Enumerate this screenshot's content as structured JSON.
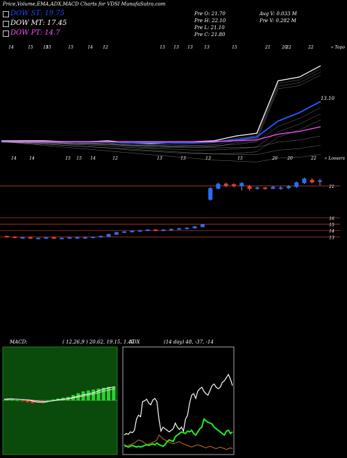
{
  "title": "Price,Volume,EMA,ADX,MACD Charts for VDSI MunafaSutra.com",
  "dow": [
    {
      "label": "DOW ST: 19.75",
      "color": "#1f4fff"
    },
    {
      "label": "DOW MT: 17.45",
      "color": "#ffffff"
    },
    {
      "label": "DOW PT: 14.7",
      "color": "#ff55ff"
    }
  ],
  "quote": {
    "open": "Pre  O: 21.70",
    "high": "Pre  H: 22.10",
    "low": "Pre  L: 21.10",
    "close": "Pre  C: 21.80",
    "avgv": "Avg V: 0.033  M",
    "prev": "Pre  V: 0.282  M"
  },
  "chart_data": [
    {
      "type": "line",
      "name": "ema-panel",
      "top_ticks": [
        "14",
        "15",
        "15",
        "15",
        "15",
        "14",
        "12",
        "13",
        "13",
        "13",
        "13",
        "15",
        "21",
        "20",
        "22",
        "22"
      ],
      "corner_label": "« Topo",
      "price_label": "13.10",
      "series": [
        {
          "color": "#ffffff",
          "values": [
            13.4,
            13.4,
            13.4,
            13.3,
            13.3,
            13.4,
            13.2,
            13.1,
            13.2,
            13.3,
            13.4,
            13.9,
            14.2,
            19.8,
            20.2,
            21.4
          ]
        },
        {
          "color": "#2255ff",
          "values": [
            13.3,
            13.3,
            13.3,
            13.3,
            13.3,
            13.3,
            13.2,
            13.2,
            13.2,
            13.2,
            13.3,
            13.5,
            13.8,
            15.5,
            16.4,
            17.6
          ]
        },
        {
          "color": "#ff55ff",
          "values": [
            13.3,
            13.3,
            13.3,
            13.3,
            13.3,
            13.3,
            13.3,
            13.3,
            13.3,
            13.3,
            13.3,
            13.4,
            13.5,
            14.1,
            14.4,
            14.9
          ]
        }
      ]
    },
    {
      "type": "candlestick",
      "name": "price-panel",
      "top_ticks": [
        "14",
        "14",
        "15",
        "15",
        "14",
        "12",
        "13",
        "13",
        "13",
        "15",
        "20",
        "20",
        "22"
      ],
      "corner_label": "« Loosers",
      "levels": [
        "21",
        "16",
        "15",
        "14",
        "13"
      ],
      "candles": [
        {
          "o": 13.1,
          "c": 13.0,
          "h": 13.2,
          "l": 12.9
        },
        {
          "o": 13.0,
          "c": 12.9,
          "h": 13.1,
          "l": 12.8
        },
        {
          "o": 12.9,
          "c": 12.9,
          "h": 13.0,
          "l": 12.8
        },
        {
          "o": 12.9,
          "c": 12.8,
          "h": 13.0,
          "l": 12.7
        },
        {
          "o": 12.8,
          "c": 12.8,
          "h": 12.9,
          "l": 12.7
        },
        {
          "o": 12.8,
          "c": 12.9,
          "h": 12.9,
          "l": 12.7
        },
        {
          "o": 12.9,
          "c": 12.8,
          "h": 13.0,
          "l": 12.7
        },
        {
          "o": 12.8,
          "c": 12.8,
          "h": 12.9,
          "l": 12.7
        },
        {
          "o": 12.8,
          "c": 12.9,
          "h": 12.9,
          "l": 12.7
        },
        {
          "o": 12.9,
          "c": 12.9,
          "h": 13.0,
          "l": 12.8
        },
        {
          "o": 12.9,
          "c": 12.9,
          "h": 13.0,
          "l": 12.8
        },
        {
          "o": 12.9,
          "c": 13.0,
          "h": 13.0,
          "l": 12.8
        },
        {
          "o": 13.0,
          "c": 13.1,
          "h": 13.2,
          "l": 12.9
        },
        {
          "o": 13.1,
          "c": 13.4,
          "h": 13.5,
          "l": 13.0
        },
        {
          "o": 13.4,
          "c": 13.7,
          "h": 13.8,
          "l": 13.3
        },
        {
          "o": 13.7,
          "c": 13.8,
          "h": 13.9,
          "l": 13.6
        },
        {
          "o": 13.8,
          "c": 13.9,
          "h": 14.0,
          "l": 13.7
        },
        {
          "o": 13.9,
          "c": 14.0,
          "h": 14.1,
          "l": 13.8
        },
        {
          "o": 14.0,
          "c": 14.1,
          "h": 14.2,
          "l": 13.9
        },
        {
          "o": 14.1,
          "c": 14.0,
          "h": 14.2,
          "l": 13.9
        },
        {
          "o": 14.0,
          "c": 14.1,
          "h": 14.2,
          "l": 13.9
        },
        {
          "o": 14.1,
          "c": 14.2,
          "h": 14.3,
          "l": 14.0
        },
        {
          "o": 14.2,
          "c": 14.3,
          "h": 14.4,
          "l": 14.1
        },
        {
          "o": 14.3,
          "c": 14.4,
          "h": 14.5,
          "l": 14.2
        },
        {
          "o": 14.4,
          "c": 14.6,
          "h": 14.7,
          "l": 14.3
        },
        {
          "o": 14.6,
          "c": 14.9,
          "h": 15.0,
          "l": 14.5
        },
        {
          "o": 18.9,
          "c": 20.6,
          "h": 20.8,
          "l": 18.7
        },
        {
          "o": 20.6,
          "c": 21.3,
          "h": 21.5,
          "l": 20.5
        },
        {
          "o": 21.3,
          "c": 21.1,
          "h": 21.5,
          "l": 20.8
        },
        {
          "o": 21.2,
          "c": 21.0,
          "h": 21.4,
          "l": 20.8
        },
        {
          "o": 21.0,
          "c": 21.4,
          "h": 21.6,
          "l": 20.3
        },
        {
          "o": 20.9,
          "c": 20.6,
          "h": 21.1,
          "l": 20.3
        },
        {
          "o": 20.6,
          "c": 20.7,
          "h": 20.9,
          "l": 20.4
        },
        {
          "o": 20.7,
          "c": 20.6,
          "h": 20.8,
          "l": 20.4
        },
        {
          "o": 20.6,
          "c": 20.8,
          "h": 21.0,
          "l": 20.5
        },
        {
          "o": 20.6,
          "c": 20.7,
          "h": 20.9,
          "l": 20.4
        },
        {
          "o": 20.7,
          "c": 20.9,
          "h": 21.1,
          "l": 20.5
        },
        {
          "o": 20.9,
          "c": 21.5,
          "h": 21.7,
          "l": 20.7
        },
        {
          "o": 21.5,
          "c": 22.1,
          "h": 22.3,
          "l": 21.3
        },
        {
          "o": 21.9,
          "c": 21.6,
          "h": 22.2,
          "l": 21.4
        },
        {
          "o": 21.7,
          "c": 21.8,
          "h": 22.1,
          "l": 21.1
        }
      ]
    },
    {
      "type": "line",
      "name": "macd-panel",
      "label": "MACD:",
      "params": "( 12,26,9 ) 20.62,  19.15,  1.47",
      "histogram": [
        0.1,
        0.1,
        0.0,
        -0.1,
        -0.2,
        -0.3,
        -0.2,
        -0.1,
        0.0,
        0.1,
        0.2,
        0.3,
        0.4,
        0.6,
        0.8,
        1.0,
        1.1,
        1.2,
        1.3,
        1.4,
        1.5,
        1.5
      ]
    },
    {
      "type": "line",
      "name": "adx-panel",
      "label": "ADX",
      "params": "(14  day) 48,  -37,  -14"
    }
  ]
}
